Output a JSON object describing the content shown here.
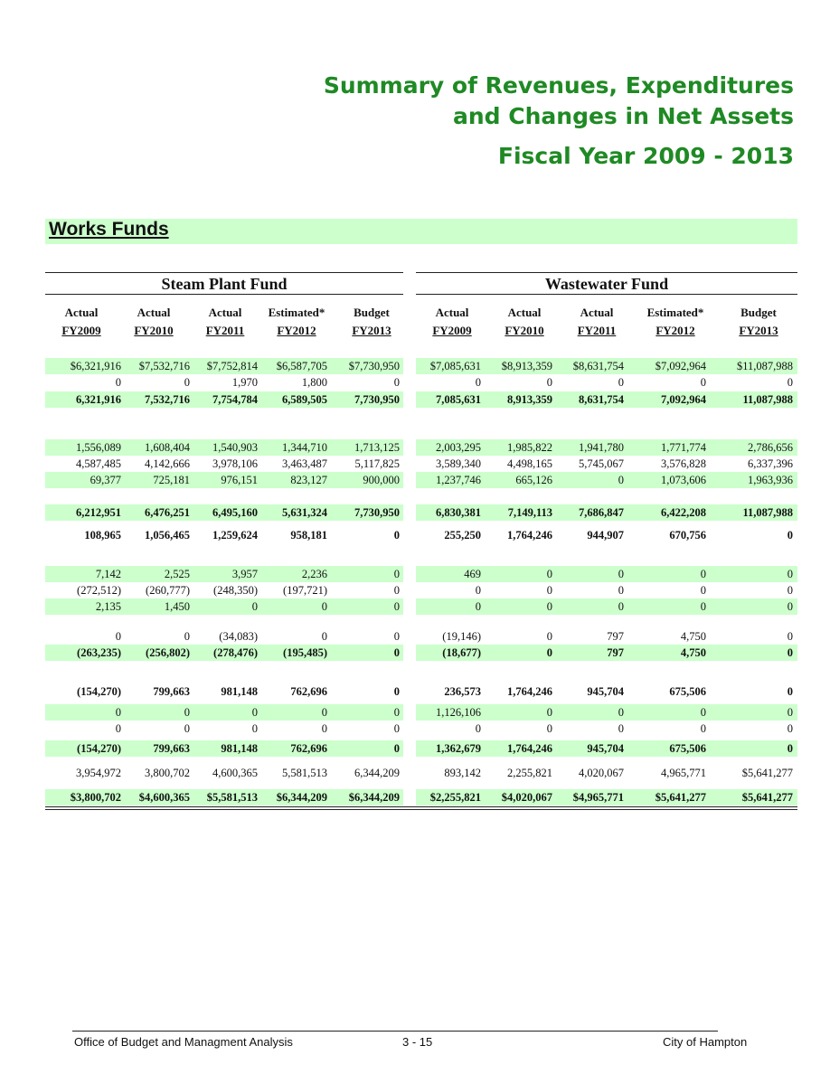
{
  "title": {
    "line1": "Summary of Revenues, Expenditures",
    "line2": "and Changes in Net Assets",
    "line3": "Fiscal Year 2009 - 2013"
  },
  "section": "Works Funds",
  "funds": [
    "Steam Plant Fund",
    "Wastewater Fund"
  ],
  "columns": [
    {
      "top": "Actual",
      "bottom": "FY2009"
    },
    {
      "top": "Actual",
      "bottom": "FY2010"
    },
    {
      "top": "Actual",
      "bottom": "FY2011"
    },
    {
      "top": "Estimated*",
      "bottom": "FY2012"
    },
    {
      "top": "Budget",
      "bottom": "FY2013"
    },
    {
      "top": "Actual",
      "bottom": "FY2009"
    },
    {
      "top": "Actual",
      "bottom": "FY2010"
    },
    {
      "top": "Actual",
      "bottom": "FY2011"
    },
    {
      "top": "Estimated*",
      "bottom": "FY2012"
    },
    {
      "top": "Budget",
      "bottom": "FY2013"
    }
  ],
  "rows": [
    {
      "bg": true,
      "bold": false,
      "v": [
        "$6,321,916",
        "$7,532,716",
        "$7,752,814",
        "$6,587,705",
        "$7,730,950",
        "$7,085,631",
        "$8,913,359",
        "$8,631,754",
        "$7,092,964",
        "$11,087,988"
      ]
    },
    {
      "bg": false,
      "bold": false,
      "v": [
        "0",
        "0",
        "1,970",
        "1,800",
        "0",
        "0",
        "0",
        "0",
        "0",
        "0"
      ]
    },
    {
      "bg": true,
      "bold": true,
      "v": [
        "6,321,916",
        "7,532,716",
        "7,754,784",
        "6,589,505",
        "7,730,950",
        "7,085,631",
        "8,913,359",
        "8,631,754",
        "7,092,964",
        "11,087,988"
      ]
    },
    {
      "bg": true,
      "bold": false,
      "v": [
        "1,556,089",
        "1,608,404",
        "1,540,903",
        "1,344,710",
        "1,713,125",
        "2,003,295",
        "1,985,822",
        "1,941,780",
        "1,771,774",
        "2,786,656"
      ]
    },
    {
      "bg": false,
      "bold": false,
      "v": [
        "4,587,485",
        "4,142,666",
        "3,978,106",
        "3,463,487",
        "5,117,825",
        "3,589,340",
        "4,498,165",
        "5,745,067",
        "3,576,828",
        "6,337,396"
      ]
    },
    {
      "bg": true,
      "bold": false,
      "v": [
        "69,377",
        "725,181",
        "976,151",
        "823,127",
        "900,000",
        "1,237,746",
        "665,126",
        "0",
        "1,073,606",
        "1,963,936"
      ]
    },
    {
      "bg": true,
      "bold": true,
      "v": [
        "6,212,951",
        "6,476,251",
        "6,495,160",
        "5,631,324",
        "7,730,950",
        "6,830,381",
        "7,149,113",
        "7,686,847",
        "6,422,208",
        "11,087,988"
      ]
    },
    {
      "bg": false,
      "bold": true,
      "v": [
        "108,965",
        "1,056,465",
        "1,259,624",
        "958,181",
        "0",
        "255,250",
        "1,764,246",
        "944,907",
        "670,756",
        "0"
      ]
    },
    {
      "bg": true,
      "bold": false,
      "v": [
        "7,142",
        "2,525",
        "3,957",
        "2,236",
        "0",
        "469",
        "0",
        "0",
        "0",
        "0"
      ]
    },
    {
      "bg": false,
      "bold": false,
      "v": [
        "(272,512)",
        "(260,777)",
        "(248,350)",
        "(197,721)",
        "0",
        "0",
        "0",
        "0",
        "0",
        "0"
      ]
    },
    {
      "bg": true,
      "bold": false,
      "v": [
        "2,135",
        "1,450",
        "0",
        "0",
        "0",
        "0",
        "0",
        "0",
        "0",
        "0"
      ]
    },
    {
      "bg": false,
      "bold": false,
      "v": [
        "0",
        "0",
        "(34,083)",
        "0",
        "0",
        "(19,146)",
        "0",
        "797",
        "4,750",
        "0"
      ]
    },
    {
      "bg": true,
      "bold": true,
      "v": [
        "(263,235)",
        "(256,802)",
        "(278,476)",
        "(195,485)",
        "0",
        "(18,677)",
        "0",
        "797",
        "4,750",
        "0"
      ]
    },
    {
      "bg": false,
      "bold": true,
      "v": [
        "(154,270)",
        "799,663",
        "981,148",
        "762,696",
        "0",
        "236,573",
        "1,764,246",
        "945,704",
        "675,506",
        "0"
      ]
    },
    {
      "bg": true,
      "bold": false,
      "v": [
        "0",
        "0",
        "0",
        "0",
        "0",
        "1,126,106",
        "0",
        "0",
        "0",
        "0"
      ]
    },
    {
      "bg": false,
      "bold": false,
      "v": [
        "0",
        "0",
        "0",
        "0",
        "0",
        "0",
        "0",
        "0",
        "0",
        "0"
      ]
    },
    {
      "bg": true,
      "bold": true,
      "v": [
        "(154,270)",
        "799,663",
        "981,148",
        "762,696",
        "0",
        "1,362,679",
        "1,764,246",
        "945,704",
        "675,506",
        "0"
      ]
    },
    {
      "bg": false,
      "bold": false,
      "v": [
        "3,954,972",
        "3,800,702",
        "4,600,365",
        "5,581,513",
        "6,344,209",
        "893,142",
        "2,255,821",
        "4,020,067",
        "4,965,771",
        "$5,641,277"
      ]
    },
    {
      "bg": true,
      "bold": true,
      "v": [
        "$3,800,702",
        "$4,600,365",
        "$5,581,513",
        "$6,344,209",
        "$6,344,209",
        "$2,255,821",
        "$4,020,067",
        "$4,965,771",
        "$5,641,277",
        "$5,641,277"
      ]
    }
  ],
  "footer": {
    "left": "Office of Budget and Managment Analysis",
    "center": "3 - 15",
    "right": "City of Hampton"
  }
}
